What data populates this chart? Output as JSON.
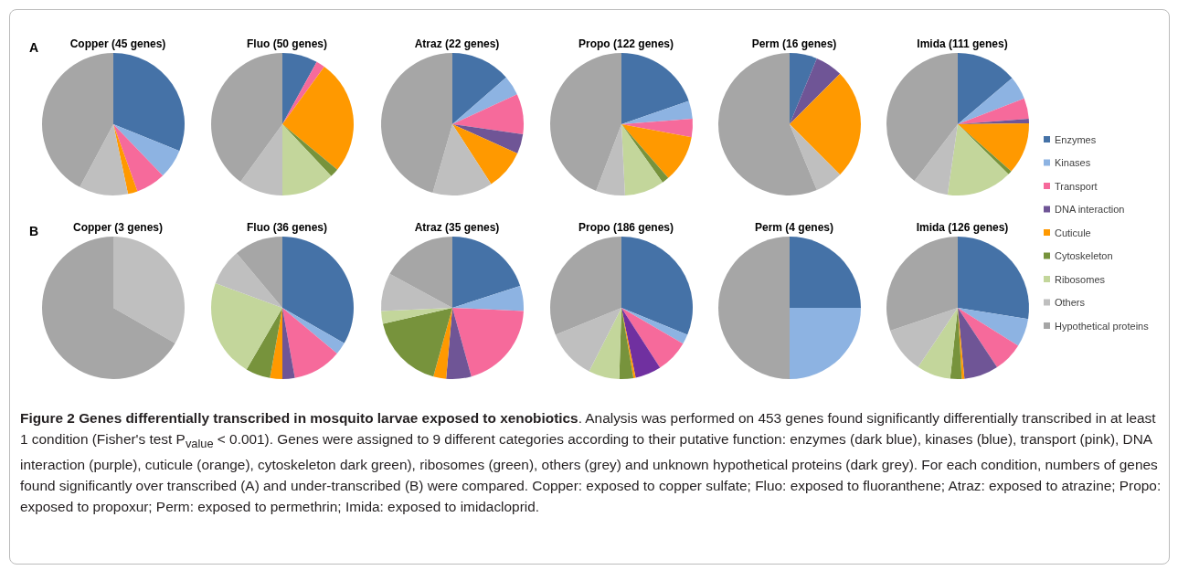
{
  "chart_data": [
    {
      "type": "pie",
      "title": "Copper (45 genes)",
      "annotations": [
        "A"
      ],
      "categories": [
        null,
        null,
        null,
        null,
        null,
        null,
        null,
        null,
        null
      ],
      "values": [
        31.1,
        6.7,
        6.7,
        0,
        2.2,
        0,
        0,
        11.1,
        42.2
      ],
      "colors": [
        "#4572a7",
        "#8db3e2",
        "#f66a9b",
        "#6f5596",
        "#ff9900",
        "#77933c",
        "#c3d69b",
        "#bfbfbf",
        "#a6a6a6"
      ],
      "legend": false
    },
    {
      "type": "pie",
      "title": "Fluo (50 genes)",
      "categories": [
        null,
        null,
        null,
        null,
        null,
        null,
        null,
        null,
        null
      ],
      "values": [
        8,
        0,
        2,
        0,
        26,
        2,
        12,
        10,
        40
      ],
      "colors": [
        "#4572a7",
        "#8db3e2",
        "#f66a9b",
        "#6f5596",
        "#ff9900",
        "#77933c",
        "#c3d69b",
        "#bfbfbf",
        "#a6a6a6"
      ],
      "legend": false
    },
    {
      "type": "pie",
      "title": "Atraz (22 genes)",
      "categories": [
        null,
        null,
        null,
        null,
        null,
        null,
        null,
        null,
        null
      ],
      "values": [
        13.6,
        4.5,
        9.1,
        4.5,
        9.1,
        0,
        0,
        13.6,
        45.5
      ],
      "colors": [
        "#4572a7",
        "#8db3e2",
        "#f66a9b",
        "#6f5596",
        "#ff9900",
        "#77933c",
        "#c3d69b",
        "#bfbfbf",
        "#a6a6a6"
      ],
      "legend": false
    },
    {
      "type": "pie",
      "title": "Propo (122 genes)",
      "categories": [
        null,
        null,
        null,
        null,
        null,
        null,
        null,
        null,
        null
      ],
      "values": [
        19.7,
        4.1,
        4.1,
        0,
        10.7,
        1.6,
        9.0,
        6.6,
        44.2
      ],
      "colors": [
        "#4572a7",
        "#8db3e2",
        "#f66a9b",
        "#6f5596",
        "#ff9900",
        "#77933c",
        "#c3d69b",
        "#bfbfbf",
        "#a6a6a6"
      ],
      "legend": false
    },
    {
      "type": "pie",
      "title": "Perm (16 genes)",
      "categories": [
        null,
        null,
        null,
        null,
        null,
        null,
        null,
        null,
        null
      ],
      "values": [
        6.25,
        0,
        0,
        6.25,
        25,
        0,
        0,
        6.25,
        56.25
      ],
      "colors": [
        "#4572a7",
        "#8db3e2",
        "#f66a9b",
        "#6f5596",
        "#ff9900",
        "#77933c",
        "#c3d69b",
        "#bfbfbf",
        "#a6a6a6"
      ],
      "legend": false
    },
    {
      "type": "pie",
      "title": "Imida (111 genes)",
      "categories": [
        "Enzymes",
        "Kinases",
        "Transport",
        "DNA interaction",
        "Cuticule",
        "Cytoskeleton",
        "Ribosomes",
        "Others",
        "Hypothetical proteins"
      ],
      "values": [
        13.8,
        5.3,
        4.7,
        1.0,
        11.7,
        0.9,
        14.9,
        8.1,
        39.6
      ],
      "colors": [
        "#4572a7",
        "#8db3e2",
        "#f66a9b",
        "#6f5596",
        "#ff9900",
        "#77933c",
        "#c3d69b",
        "#bfbfbf",
        "#a6a6a6"
      ],
      "legend": "right"
    },
    {
      "type": "pie",
      "title": "Copper (3 genes)",
      "annotations": [
        "B"
      ],
      "categories": [
        null,
        null,
        null,
        null,
        null,
        null,
        null,
        null,
        null
      ],
      "values": [
        0,
        0,
        0,
        0,
        0,
        0,
        0,
        33.3,
        66.7
      ],
      "colors": [
        "#4572a7",
        "#8db3e2",
        "#f66a9b",
        "#6f5596",
        "#ff9900",
        "#77933c",
        "#c3d69b",
        "#bfbfbf",
        "#a6a6a6"
      ],
      "legend": false
    },
    {
      "type": "pie",
      "title": "Fluo (36 genes)",
      "categories": [
        null,
        null,
        null,
        null,
        null,
        null,
        null,
        null,
        null
      ],
      "values": [
        33.3,
        2.8,
        11.1,
        2.8,
        2.8,
        5.6,
        22.2,
        8.3,
        11.1
      ],
      "colors": [
        "#4572a7",
        "#8db3e2",
        "#f66a9b",
        "#6f5596",
        "#ff9900",
        "#77933c",
        "#c3d69b",
        "#bfbfbf",
        "#a6a6a6"
      ],
      "legend": false
    },
    {
      "type": "pie",
      "title": "Atraz (35 genes)",
      "categories": [
        null,
        null,
        null,
        null,
        null,
        null,
        null,
        null,
        null
      ],
      "values": [
        20,
        5.7,
        20,
        5.7,
        2.9,
        17.1,
        2.9,
        8.6,
        17.1
      ],
      "colors": [
        "#4572a7",
        "#8db3e2",
        "#f66a9b",
        "#6f5596",
        "#ff9900",
        "#77933c",
        "#c3d69b",
        "#bfbfbf",
        "#a6a6a6"
      ],
      "legend": false
    },
    {
      "type": "pie",
      "title": "Propo (186 genes)",
      "categories": [
        null,
        null,
        null,
        null,
        null,
        null,
        null,
        null,
        null
      ],
      "values": [
        31.2,
        2.2,
        7.5,
        5.9,
        0.5,
        3.2,
        7.0,
        11.3,
        31.2
      ],
      "colors": [
        "#4572a7",
        "#8db3e2",
        "#f66a9b",
        "#7030a0",
        "#ff9900",
        "#77933c",
        "#c3d69b",
        "#bfbfbf",
        "#a6a6a6"
      ],
      "legend": false
    },
    {
      "type": "pie",
      "title": "Perm (4 genes)",
      "categories": [
        null,
        null,
        null,
        null,
        null,
        null,
        null,
        null,
        null
      ],
      "values": [
        25,
        25,
        0,
        0,
        0,
        0,
        0,
        0,
        50
      ],
      "colors": [
        "#4572a7",
        "#8db3e2",
        "#f66a9b",
        "#6f5596",
        "#ff9900",
        "#77933c",
        "#c3d69b",
        "#bfbfbf",
        "#a6a6a6"
      ],
      "legend": false
    },
    {
      "type": "pie",
      "title": "Imida (126 genes)",
      "annotations": [
        "Figure 2 Genes differentially transcribed in mosquito larvae exposed to xenobiotics",
        ". Analysis was performed on 453 genes found significantly differentially transcribed in at least 1 condition (Fisher's test P$_{value}$ < 0.001). Genes were assigned to 9 different categories according to their putative function: enzymes (dark blue), kinases (blue), transport (pink), DNA interaction (purple), cuticule (orange), cytoskeleton dark green), ribosomes (green), others (grey) and unknown hypothetical proteins (dark grey). For each condition, numbers of genes found significantly over transcribed (A) and under-transcribed (B) were compared. Copper: exposed to copper sulfate; Fluo: exposed to fluoranthene; Atraz: exposed to atrazine; Propo: exposed to propoxur; Perm: exposed to permethrin; Imida: exposed to imidacloprid."
      ],
      "categories": [
        null,
        null,
        null,
        null,
        null,
        null,
        null,
        null,
        null
      ],
      "values": [
        27.5,
        6.4,
        6.8,
        7.8,
        0.6,
        2.6,
        7.7,
        10.4,
        30.2
      ],
      "colors": [
        "#4572a7",
        "#8db3e2",
        "#f66a9b",
        "#6f5596",
        "#ff9900",
        "#77933c",
        "#c3d69b",
        "#bfbfbf",
        "#a6a6a6"
      ],
      "legend": false
    }
  ]
}
